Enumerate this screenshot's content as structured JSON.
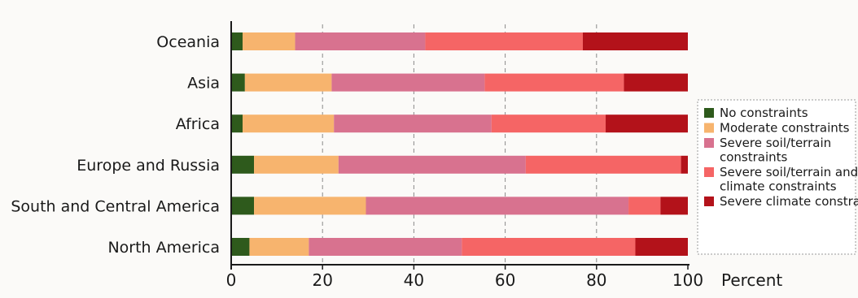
{
  "chart_data": {
    "type": "bar",
    "orientation": "horizontal",
    "stacked": true,
    "categories": [
      "Oceania",
      "Asia",
      "Africa",
      "Europe and Russia",
      "South and Central America",
      "North America"
    ],
    "series": [
      {
        "name": "No constraints",
        "color": "#2e5a1c",
        "values": [
          2.5,
          3,
          2.5,
          5,
          5,
          4
        ]
      },
      {
        "name": "Moderate constraints",
        "color": "#f7b46e",
        "values": [
          11.5,
          19,
          20,
          18.5,
          24.5,
          13
        ]
      },
      {
        "name": "Severe soil/terrain constraints",
        "color": "#d8728f",
        "values": [
          28.5,
          33.5,
          34.5,
          41,
          57.5,
          33.5
        ]
      },
      {
        "name": "Severe soil/terrain and climate constraints",
        "color": "#f56565",
        "values": [
          34.5,
          30.5,
          25,
          34,
          7,
          38
        ]
      },
      {
        "name": "Severe climate constraints",
        "color": "#b3121a",
        "values": [
          23,
          14,
          18,
          1.5,
          6,
          11.5
        ]
      }
    ],
    "xlim": [
      0,
      100
    ],
    "xticks": [
      "0",
      "20",
      "40",
      "60",
      "80",
      "100"
    ],
    "xlabel": "Percent",
    "ylabel": "",
    "title": "",
    "grid": "vertical dashed",
    "legend_position": "right"
  }
}
